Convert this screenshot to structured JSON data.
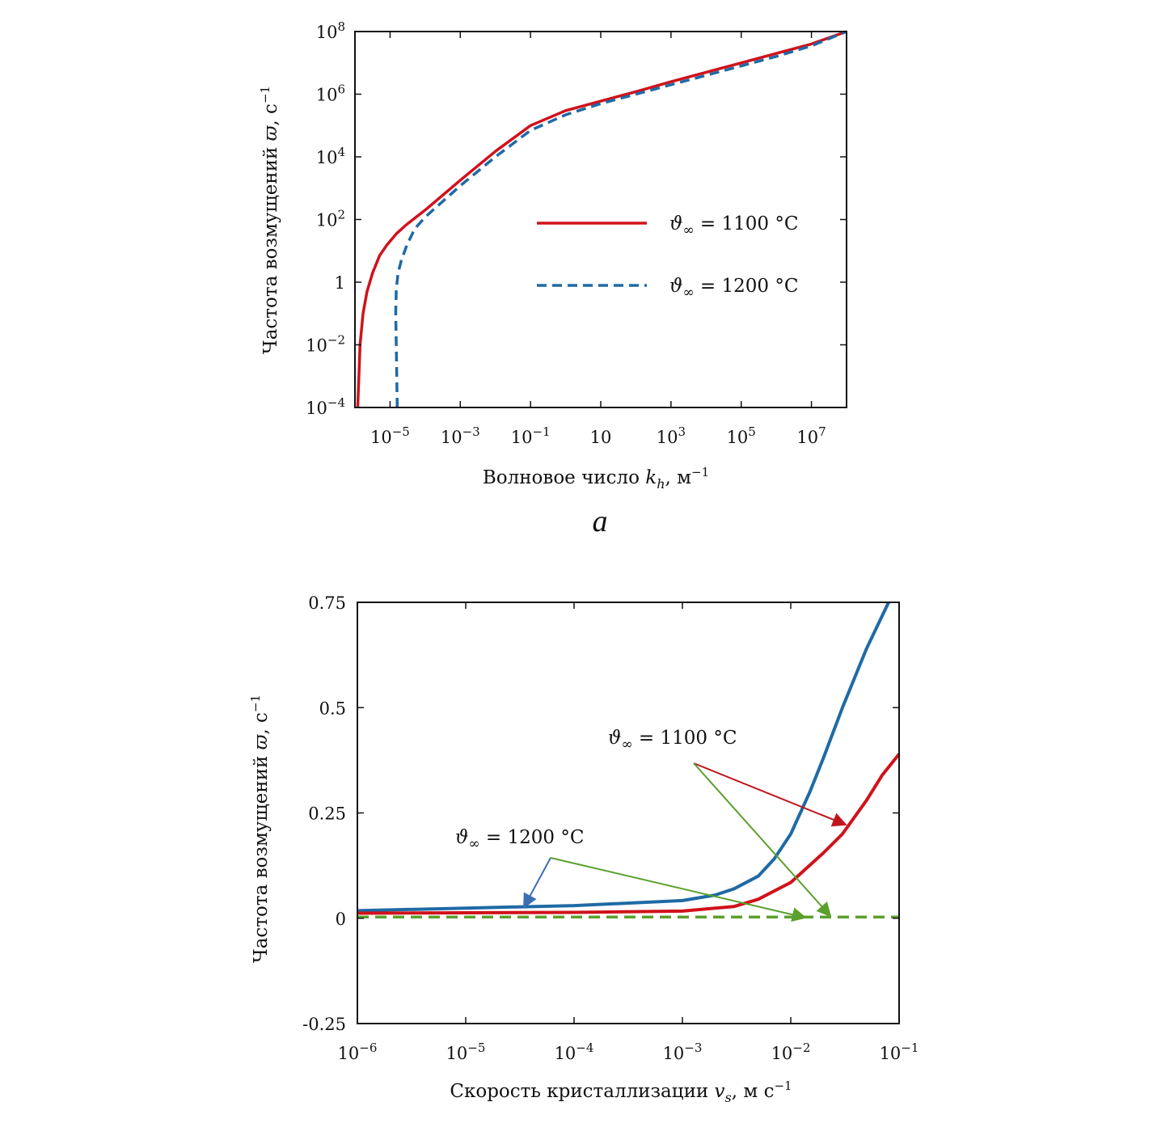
{
  "chart_data": [
    {
      "type": "line",
      "panel_caption": "а",
      "xscale": "log",
      "yscale": "log",
      "xlim": [
        1e-06,
        100000000.0
      ],
      "ylim": [
        0.0001,
        100000000.0
      ],
      "xticks": [
        {
          "value": 1e-05,
          "mant": "10",
          "exp": "−5"
        },
        {
          "value": 0.001,
          "mant": "10",
          "exp": "−3"
        },
        {
          "value": 0.1,
          "mant": "10",
          "exp": "−1"
        },
        {
          "value": 10,
          "mant": "10",
          "exp": ""
        },
        {
          "value": 1000.0,
          "mant": "10",
          "exp": "3"
        },
        {
          "value": 100000.0,
          "mant": "10",
          "exp": "5"
        },
        {
          "value": 10000000.0,
          "mant": "10",
          "exp": "7"
        }
      ],
      "yticks": [
        {
          "value": 100000000.0,
          "mant": "10",
          "exp": "8"
        },
        {
          "value": 1000000.0,
          "mant": "10",
          "exp": "6"
        },
        {
          "value": 10000.0,
          "mant": "10",
          "exp": "4"
        },
        {
          "value": 100.0,
          "mant": "10",
          "exp": "2"
        },
        {
          "value": 1,
          "mant": "1",
          "exp": ""
        },
        {
          "value": 0.01,
          "mant": "10",
          "exp": "−2"
        },
        {
          "value": 0.0001,
          "mant": "10",
          "exp": "−4"
        }
      ],
      "xlabel": {
        "text": "Волновое число",
        "symbol": "k",
        "sub": "h",
        "unit": ", м",
        "unit_exp": "−1"
      },
      "ylabel": {
        "text": "Частота возмущений",
        "symbol": "ϖ",
        "unit": ", с",
        "unit_exp": "−1"
      },
      "legend": {
        "position": "center-right"
      },
      "series": [
        {
          "name": "ϑ∞ = 1100 °C",
          "sym": "ϑ",
          "sub": "∞",
          "rest": " = 1100 °C",
          "color": "#d0121b",
          "dash": "solid",
          "x": [
            1.2e-06,
            1.3e-06,
            1.4e-06,
            1.7e-06,
            2.2e-06,
            3.2e-06,
            5e-06,
            8e-06,
            1.5e-05,
            3e-05,
            0.0001,
            0.001,
            0.01,
            0.1,
            1,
            10,
            100,
            1000.0,
            10000.0,
            100000.0,
            1000000.0,
            10000000.0,
            100000000.0
          ],
          "y": [
            0.0001,
            0.001,
            0.01,
            0.1,
            0.5,
            2,
            7,
            15,
            35,
            70,
            200,
            1800,
            15000,
            100000,
            300000,
            600000,
            1200000,
            2500000,
            5000000,
            10000000,
            20000000,
            40000000,
            100000000
          ]
        },
        {
          "name": "ϑ∞ = 1200 °C",
          "sym": "ϑ",
          "sub": "∞",
          "rest": " = 1200 °C",
          "color": "#1f6aa5",
          "dash": "dashed",
          "x": [
            1.6e-05,
            1.55e-05,
            1.5e-05,
            1.45e-05,
            1.5e-05,
            1.7e-05,
            2.1e-05,
            3e-05,
            5e-05,
            0.0001,
            0.001,
            0.01,
            0.1,
            1,
            10,
            100,
            1000.0,
            10000.0,
            100000.0,
            1000000.0,
            10000000.0,
            100000000.0
          ],
          "y": [
            0.0001,
            0.001,
            0.01,
            0.1,
            0.6,
            2,
            5,
            15,
            50,
            120,
            1200,
            10000,
            70000,
            220000,
            500000,
            1000000,
            2000000,
            4000000,
            8000000,
            16000000,
            35000000,
            100000000
          ]
        }
      ]
    },
    {
      "type": "line",
      "xscale": "log",
      "yscale": "linear",
      "xlim": [
        1e-06,
        0.1
      ],
      "ylim": [
        -0.25,
        0.75
      ],
      "xticks": [
        {
          "value": 1e-06,
          "mant": "10",
          "exp": "−6"
        },
        {
          "value": 1e-05,
          "mant": "10",
          "exp": "−5"
        },
        {
          "value": 0.0001,
          "mant": "10",
          "exp": "−4"
        },
        {
          "value": 0.001,
          "mant": "10",
          "exp": "−3"
        },
        {
          "value": 0.01,
          "mant": "10",
          "exp": "−2"
        },
        {
          "value": 0.1,
          "mant": "10",
          "exp": "−1"
        }
      ],
      "yticks": [
        {
          "value": 0.75,
          "label": "0.75"
        },
        {
          "value": 0.5,
          "label": "0.5"
        },
        {
          "value": 0.25,
          "label": "0.25"
        },
        {
          "value": 0,
          "label": "0"
        },
        {
          "value": -0.25,
          "label": "-0.25"
        }
      ],
      "xlabel": {
        "text": "Скорость кристаллизации",
        "symbol": "v",
        "sub": "s",
        "unit": ", м с",
        "unit_exp": "−1"
      },
      "ylabel": {
        "text": "Частота возмущений",
        "symbol": "ϖ",
        "unit": ", с",
        "unit_exp": "−1"
      },
      "series": [
        {
          "name": "blue solid",
          "color": "#1f6aa5",
          "dash": "solid",
          "x": [
            1e-06,
            1e-05,
            0.0001,
            0.001,
            0.002,
            0.003,
            0.005,
            0.007,
            0.01,
            0.015,
            0.02,
            0.03,
            0.05,
            0.08
          ],
          "y": [
            0.018,
            0.024,
            0.03,
            0.042,
            0.055,
            0.07,
            0.1,
            0.14,
            0.2,
            0.3,
            0.38,
            0.5,
            0.64,
            0.75
          ]
        },
        {
          "name": "red solid",
          "color": "#d0121b",
          "dash": "solid",
          "x": [
            1e-06,
            1e-05,
            0.0001,
            0.001,
            0.003,
            0.005,
            0.01,
            0.02,
            0.03,
            0.05,
            0.07,
            0.1
          ],
          "y": [
            0.012,
            0.013,
            0.014,
            0.017,
            0.028,
            0.045,
            0.085,
            0.155,
            0.2,
            0.28,
            0.34,
            0.39
          ]
        },
        {
          "name": "green dashed",
          "color": "#5aa02c",
          "dash": "dashed",
          "x": [
            1e-06,
            0.1
          ],
          "y": [
            0.003,
            0.003
          ]
        }
      ],
      "annotations": [
        {
          "sym": "ϑ",
          "sub": "∞",
          "rest": " = 1100 °C"
        },
        {
          "sym": "ϑ",
          "sub": "∞",
          "rest": " = 1200 °C"
        }
      ]
    }
  ]
}
